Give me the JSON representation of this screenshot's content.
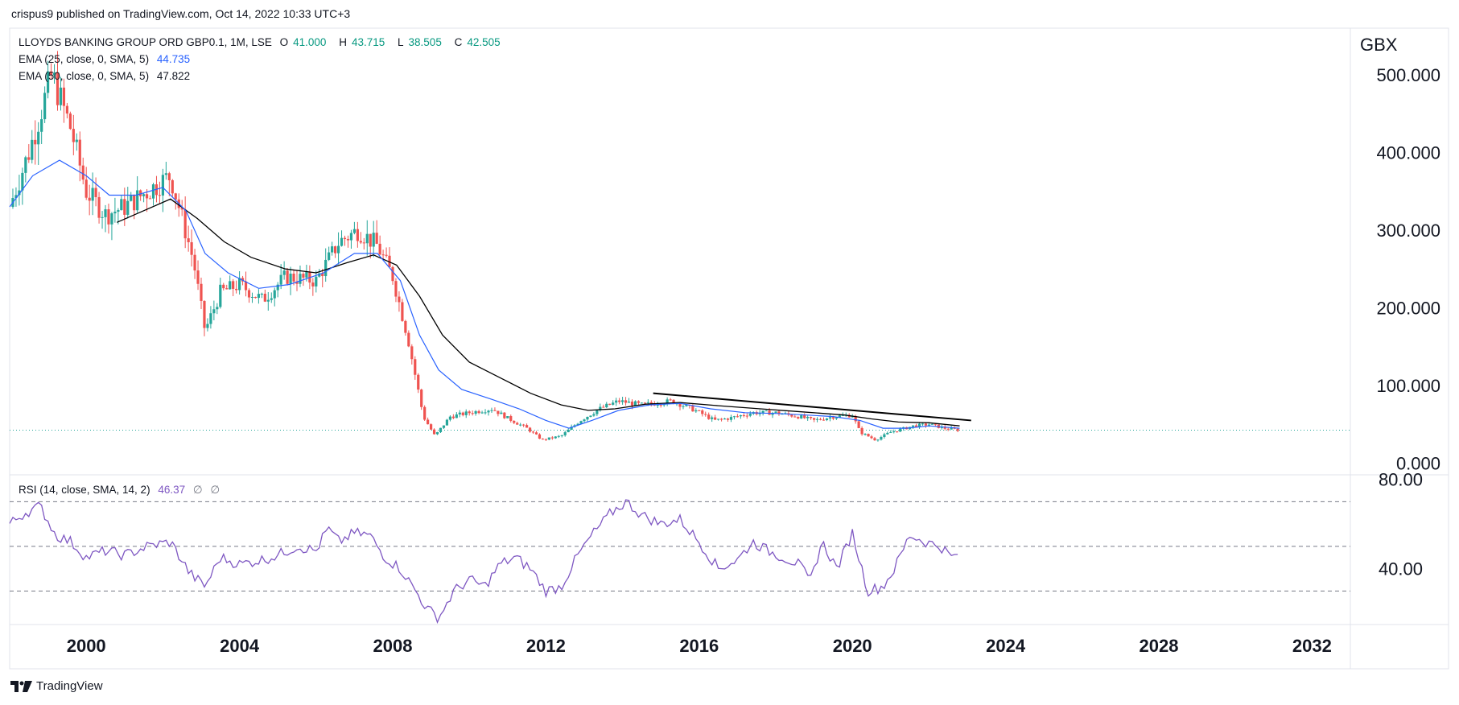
{
  "header": {
    "published": "crispus9 published on TradingView.com, Oct 14, 2022 10:33 UTC+3"
  },
  "legend": {
    "symbol": "LLOYDS BANKING GROUP ORD GBP0.1, 1M, LSE",
    "open_label": "O",
    "open": "41.000",
    "high_label": "H",
    "high": "43.715",
    "low_label": "L",
    "low": "38.505",
    "close_label": "C",
    "close": "42.505",
    "ema25_label": "EMA (25, close, 0, SMA, 5)",
    "ema25_value": "44.735",
    "ema50_label": "EMA (50, close, 0, SMA, 5)",
    "ema50_value": "47.822"
  },
  "rsi_legend": {
    "label": "RSI (14, close, SMA, 14, 2)",
    "value": "46.37",
    "extra1": "∅",
    "extra2": "∅"
  },
  "brand": {
    "name": "TradingView"
  },
  "colors": {
    "up": "#26a69a",
    "down": "#ef5350",
    "ema25": "#2962ff",
    "ema50": "#000000",
    "rsi": "#7e57c2",
    "grid": "#e0e3eb",
    "text": "#131722"
  },
  "chart_data": {
    "type": "candlestick",
    "title": "LLOYDS BANKING GROUP ORD GBP0.1, 1M, LSE",
    "currency": "GBX",
    "price_axis": {
      "ylim": [
        -15,
        560
      ],
      "ticks": [
        "0.000",
        "100.000",
        "200.000",
        "300.000",
        "400.000",
        "500.000"
      ]
    },
    "time_axis": {
      "xlim": [
        1998.0,
        2033.0
      ],
      "ticks": [
        "2000",
        "2004",
        "2008",
        "2012",
        "2016",
        "2020",
        "2024",
        "2028",
        "2032"
      ]
    },
    "last_price": 42.505,
    "price_path": [
      [
        1998.0,
        330
      ],
      [
        1998.5,
        400
      ],
      [
        1999.1,
        500
      ],
      [
        1999.6,
        430
      ],
      [
        2000.0,
        350
      ],
      [
        2000.5,
        320
      ],
      [
        2001.0,
        330
      ],
      [
        2001.6,
        350
      ],
      [
        2002.2,
        370
      ],
      [
        2002.8,
        260
      ],
      [
        2003.1,
        170
      ],
      [
        2003.5,
        220
      ],
      [
        2004.0,
        230
      ],
      [
        2004.6,
        210
      ],
      [
        2005.2,
        240
      ],
      [
        2006.0,
        235
      ],
      [
        2006.6,
        285
      ],
      [
        2007.1,
        300
      ],
      [
        2007.6,
        280
      ],
      [
        2008.0,
        240
      ],
      [
        2008.4,
        160
      ],
      [
        2008.8,
        60
      ],
      [
        2009.1,
        35
      ],
      [
        2009.5,
        60
      ],
      [
        2010.0,
        65
      ],
      [
        2010.6,
        70
      ],
      [
        2011.0,
        58
      ],
      [
        2011.5,
        45
      ],
      [
        2011.9,
        30
      ],
      [
        2012.4,
        35
      ],
      [
        2012.9,
        55
      ],
      [
        2013.4,
        70
      ],
      [
        2013.9,
        80
      ],
      [
        2014.5,
        75
      ],
      [
        2015.3,
        80
      ],
      [
        2015.9,
        68
      ],
      [
        2016.4,
        55
      ],
      [
        2016.8,
        58
      ],
      [
        2017.4,
        65
      ],
      [
        2018.0,
        65
      ],
      [
        2018.6,
        60
      ],
      [
        2019.0,
        55
      ],
      [
        2019.5,
        60
      ],
      [
        2020.0,
        62
      ],
      [
        2020.2,
        40
      ],
      [
        2020.6,
        30
      ],
      [
        2021.0,
        40
      ],
      [
        2021.6,
        48
      ],
      [
        2022.0,
        50
      ],
      [
        2022.4,
        45
      ],
      [
        2022.8,
        42.5
      ]
    ],
    "ema25_path": [
      [
        1998.0,
        330
      ],
      [
        1998.6,
        370
      ],
      [
        1999.3,
        390
      ],
      [
        2000.0,
        370
      ],
      [
        2000.6,
        345
      ],
      [
        2001.3,
        345
      ],
      [
        2002.0,
        355
      ],
      [
        2002.6,
        325
      ],
      [
        2003.1,
        270
      ],
      [
        2003.7,
        245
      ],
      [
        2004.5,
        225
      ],
      [
        2005.3,
        230
      ],
      [
        2006.2,
        245
      ],
      [
        2007.0,
        270
      ],
      [
        2007.6,
        270
      ],
      [
        2008.2,
        235
      ],
      [
        2008.7,
        165
      ],
      [
        2009.2,
        120
      ],
      [
        2009.8,
        95
      ],
      [
        2010.6,
        82
      ],
      [
        2011.3,
        70
      ],
      [
        2012.0,
        55
      ],
      [
        2012.6,
        45
      ],
      [
        2013.2,
        55
      ],
      [
        2013.9,
        68
      ],
      [
        2014.7,
        75
      ],
      [
        2015.5,
        77
      ],
      [
        2016.3,
        70
      ],
      [
        2017.2,
        65
      ],
      [
        2018.0,
        64
      ],
      [
        2018.8,
        62
      ],
      [
        2019.5,
        60
      ],
      [
        2020.2,
        55
      ],
      [
        2020.8,
        45
      ],
      [
        2021.4,
        45
      ],
      [
        2022.0,
        48
      ],
      [
        2022.8,
        45
      ]
    ],
    "ema50_path": [
      [
        2000.8,
        310
      ],
      [
        2001.5,
        325
      ],
      [
        2002.2,
        340
      ],
      [
        2002.9,
        315
      ],
      [
        2003.6,
        285
      ],
      [
        2004.3,
        265
      ],
      [
        2005.2,
        250
      ],
      [
        2006.0,
        245
      ],
      [
        2006.8,
        258
      ],
      [
        2007.5,
        268
      ],
      [
        2008.1,
        255
      ],
      [
        2008.7,
        215
      ],
      [
        2009.3,
        165
      ],
      [
        2010.0,
        130
      ],
      [
        2010.8,
        110
      ],
      [
        2011.6,
        90
      ],
      [
        2012.4,
        75
      ],
      [
        2013.1,
        68
      ],
      [
        2013.8,
        70
      ],
      [
        2014.6,
        76
      ],
      [
        2015.5,
        78
      ],
      [
        2016.5,
        74
      ],
      [
        2017.6,
        70
      ],
      [
        2018.7,
        66
      ],
      [
        2019.8,
        62
      ],
      [
        2020.5,
        57
      ],
      [
        2021.2,
        53
      ],
      [
        2022.0,
        52
      ],
      [
        2022.8,
        48
      ]
    ],
    "trendline": {
      "x": [
        2014.8,
        2023.1
      ],
      "y": [
        90,
        55
      ]
    },
    "rsi": {
      "label": "RSI (14, close, SMA, 14, 2)",
      "value": 46.37,
      "ylim": [
        15,
        82
      ],
      "tick_labels": [
        "80.00",
        "40.00"
      ],
      "bands": {
        "upper": 70,
        "middle": 50,
        "lower": 30
      },
      "path": [
        [
          1998.0,
          60
        ],
        [
          1998.4,
          65
        ],
        [
          1998.8,
          68
        ],
        [
          1999.2,
          55
        ],
        [
          1999.6,
          52
        ],
        [
          2000.0,
          45
        ],
        [
          2000.5,
          48
        ],
        [
          2001.0,
          46
        ],
        [
          2001.6,
          50
        ],
        [
          2002.2,
          52
        ],
        [
          2002.7,
          38
        ],
        [
          2003.1,
          32
        ],
        [
          2003.5,
          45
        ],
        [
          2004.0,
          42
        ],
        [
          2004.6,
          44
        ],
        [
          2005.0,
          46
        ],
        [
          2005.5,
          50
        ],
        [
          2006.0,
          48
        ],
        [
          2006.3,
          58
        ],
        [
          2006.6,
          52
        ],
        [
          2007.0,
          56
        ],
        [
          2007.4,
          55
        ],
        [
          2007.8,
          45
        ],
        [
          2008.2,
          40
        ],
        [
          2008.6,
          30
        ],
        [
          2008.9,
          22
        ],
        [
          2009.2,
          18
        ],
        [
          2009.6,
          30
        ],
        [
          2010.0,
          35
        ],
        [
          2010.4,
          32
        ],
        [
          2010.8,
          42
        ],
        [
          2011.2,
          45
        ],
        [
          2011.6,
          40
        ],
        [
          2012.0,
          30
        ],
        [
          2012.4,
          32
        ],
        [
          2012.8,
          45
        ],
        [
          2013.2,
          55
        ],
        [
          2013.7,
          65
        ],
        [
          2014.1,
          70
        ],
        [
          2014.5,
          64
        ],
        [
          2015.0,
          60
        ],
        [
          2015.5,
          62
        ],
        [
          2016.0,
          52
        ],
        [
          2016.5,
          40
        ],
        [
          2017.0,
          44
        ],
        [
          2017.4,
          52
        ],
        [
          2017.8,
          48
        ],
        [
          2018.2,
          45
        ],
        [
          2018.6,
          42
        ],
        [
          2018.9,
          34
        ],
        [
          2019.2,
          52
        ],
        [
          2019.6,
          40
        ],
        [
          2020.0,
          56
        ],
        [
          2020.4,
          30
        ],
        [
          2020.8,
          32
        ],
        [
          2021.1,
          40
        ],
        [
          2021.5,
          55
        ],
        [
          2021.9,
          52
        ],
        [
          2022.3,
          50
        ],
        [
          2022.6,
          45
        ],
        [
          2022.8,
          46.37
        ]
      ]
    }
  }
}
